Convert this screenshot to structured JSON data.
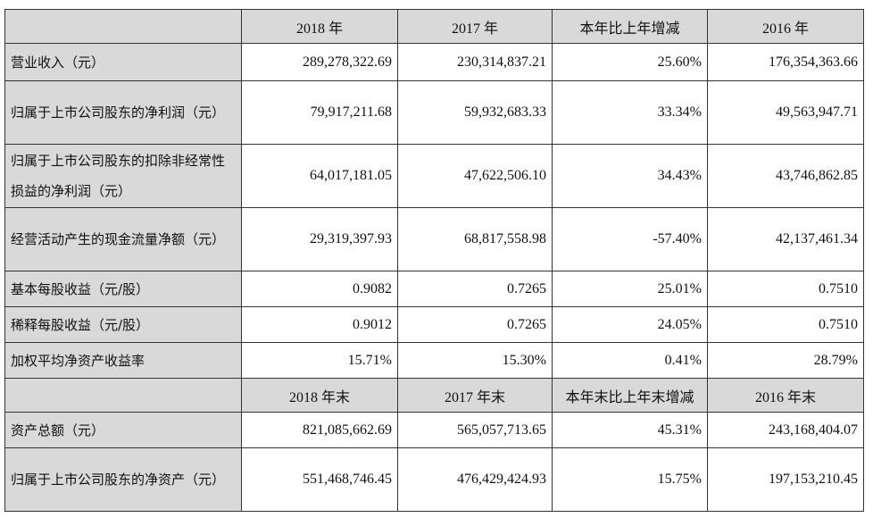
{
  "header1": [
    "",
    "2018 年",
    "2017 年",
    "本年比上年增减",
    "2016 年"
  ],
  "rows1": [
    {
      "label": "营业收入（元）",
      "values": [
        "289,278,322.69",
        "230,314,837.21",
        "25.60%",
        "176,354,363.66"
      ]
    },
    {
      "label": "归属于上市公司股东的净利润（元）",
      "values": [
        "79,917,211.68",
        "59,932,683.33",
        "33.34%",
        "49,563,947.71"
      ]
    },
    {
      "label": "归属于上市公司股东的扣除非经常性损益的净利润（元）",
      "values": [
        "64,017,181.05",
        "47,622,506.10",
        "34.43%",
        "43,746,862.85"
      ]
    },
    {
      "label": "经营活动产生的现金流量净额（元）",
      "values": [
        "29,319,397.93",
        "68,817,558.98",
        "-57.40%",
        "42,137,461.34"
      ]
    },
    {
      "label": "基本每股收益（元/股）",
      "values": [
        "0.9082",
        "0.7265",
        "25.01%",
        "0.7510"
      ]
    },
    {
      "label": "稀释每股收益（元/股）",
      "values": [
        "0.9012",
        "0.7265",
        "24.05%",
        "0.7510"
      ]
    },
    {
      "label": "加权平均净资产收益率",
      "values": [
        "15.71%",
        "15.30%",
        "0.41%",
        "28.79%"
      ]
    }
  ],
  "header2": [
    "",
    "2018 年末",
    "2017 年末",
    "本年末比上年末增减",
    "2016 年末"
  ],
  "rows2": [
    {
      "label": "资产总额（元）",
      "values": [
        "821,085,662.69",
        "565,057,713.65",
        "45.31%",
        "243,168,404.07"
      ]
    },
    {
      "label": "归属于上市公司股东的净资产（元）",
      "values": [
        "551,468,746.45",
        "476,429,424.93",
        "15.75%",
        "197,153,210.45"
      ]
    }
  ]
}
